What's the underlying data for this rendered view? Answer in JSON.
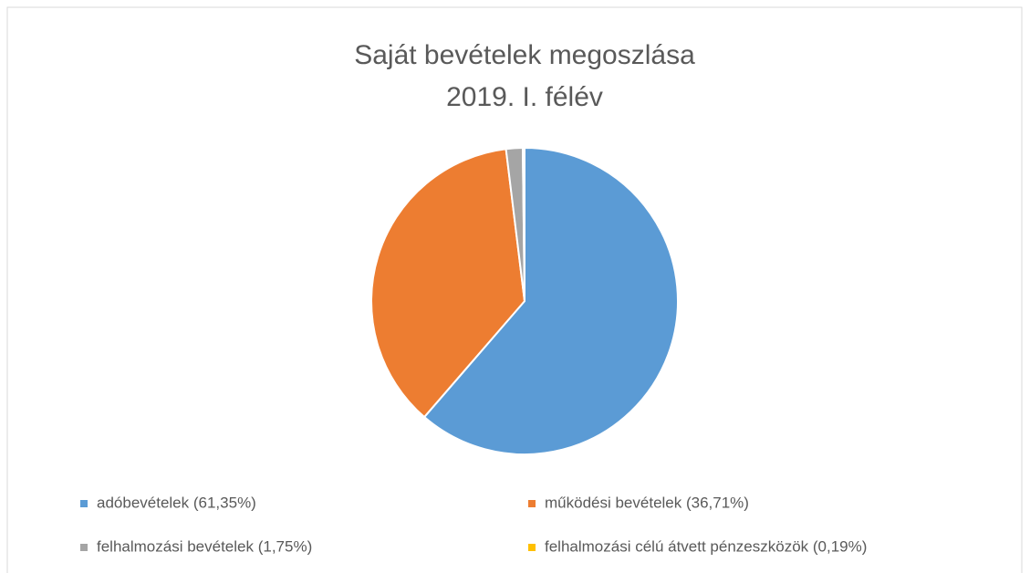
{
  "chart_data": {
    "type": "pie",
    "title": "Saját bevételek megoszlása",
    "subtitle": "2019. I. félév",
    "categories": [
      "adóbevételek (61,35%)",
      "működési bevételek (36,71%)",
      "felhalmozási bevételek (1,75%)",
      "felhalmozási célú átvett pénzeszközök (0,19%)"
    ],
    "values": [
      61.35,
      36.71,
      1.75,
      0.19
    ],
    "colors": [
      "#5b9bd5",
      "#ed7d31",
      "#a5a5a5",
      "#ffc000"
    ],
    "legend": "bottom"
  }
}
